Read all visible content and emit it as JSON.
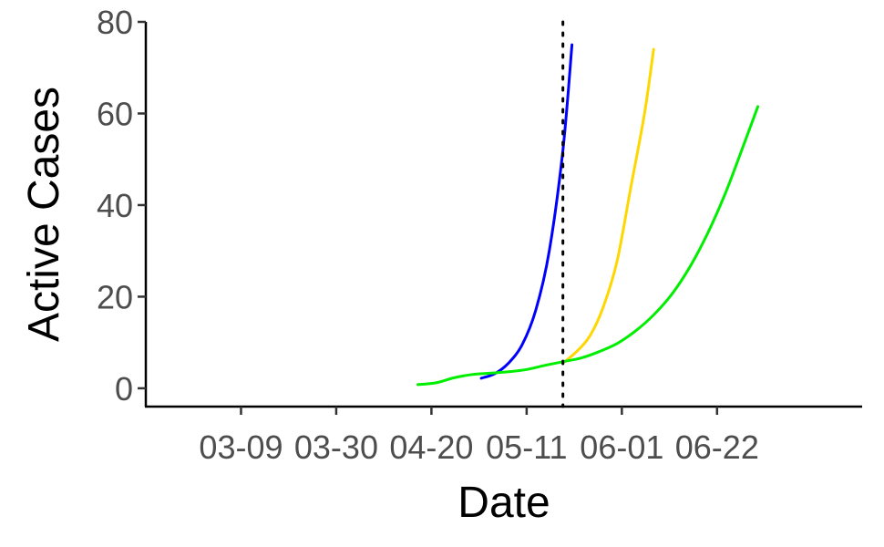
{
  "chart_data": {
    "type": "line",
    "xlabel": "Date",
    "ylabel": "Active Cases",
    "x_axis": {
      "type": "date",
      "range": [
        "2020-02-17",
        "2020-07-24"
      ],
      "ticks": [
        {
          "date": "2020-03-09",
          "label": "03-09"
        },
        {
          "date": "2020-03-30",
          "label": "03-30"
        },
        {
          "date": "2020-04-20",
          "label": "04-20"
        },
        {
          "date": "2020-05-11",
          "label": "05-11"
        },
        {
          "date": "2020-06-01",
          "label": "06-01"
        },
        {
          "date": "2020-06-22",
          "label": "06-22"
        }
      ]
    },
    "y_axis": {
      "range": [
        -4,
        80
      ],
      "ticks": [
        0,
        20,
        40,
        60,
        80
      ]
    },
    "grid": false,
    "legend": "none",
    "reference_line": {
      "x": "2020-05-19",
      "style": "dotted",
      "color": "#000000"
    },
    "series": [
      {
        "color": "#0000ff",
        "points": [
          [
            "2020-05-01",
            2.2
          ],
          [
            "2020-05-04",
            3.2
          ],
          [
            "2020-05-07",
            5.5
          ],
          [
            "2020-05-10",
            9.5
          ],
          [
            "2020-05-13",
            17
          ],
          [
            "2020-05-16",
            30
          ],
          [
            "2020-05-19",
            52
          ],
          [
            "2020-05-21",
            75
          ]
        ]
      },
      {
        "color": "#ffd700",
        "points": [
          [
            "2020-05-19",
            5.5
          ],
          [
            "2020-05-22",
            8
          ],
          [
            "2020-05-25",
            11.5
          ],
          [
            "2020-05-28",
            18
          ],
          [
            "2020-05-31",
            28
          ],
          [
            "2020-06-03",
            44
          ],
          [
            "2020-06-06",
            60
          ],
          [
            "2020-06-08",
            74
          ]
        ]
      },
      {
        "color": "#00ee00",
        "points": [
          [
            "2020-04-17",
            0.8
          ],
          [
            "2020-04-21",
            1.2
          ],
          [
            "2020-04-25",
            2.3
          ],
          [
            "2020-04-29",
            3.0
          ],
          [
            "2020-05-03",
            3.3
          ],
          [
            "2020-05-07",
            3.6
          ],
          [
            "2020-05-11",
            4.1
          ],
          [
            "2020-05-15",
            5.0
          ],
          [
            "2020-05-19",
            5.8
          ],
          [
            "2020-05-23",
            6.6
          ],
          [
            "2020-05-27",
            8.0
          ],
          [
            "2020-05-31",
            9.8
          ],
          [
            "2020-06-04",
            12.5
          ],
          [
            "2020-06-08",
            16
          ],
          [
            "2020-06-12",
            20.5
          ],
          [
            "2020-06-16",
            26.5
          ],
          [
            "2020-06-20",
            34
          ],
          [
            "2020-06-24",
            43
          ],
          [
            "2020-06-28",
            53.5
          ],
          [
            "2020-07-01",
            61.5
          ]
        ]
      }
    ]
  }
}
